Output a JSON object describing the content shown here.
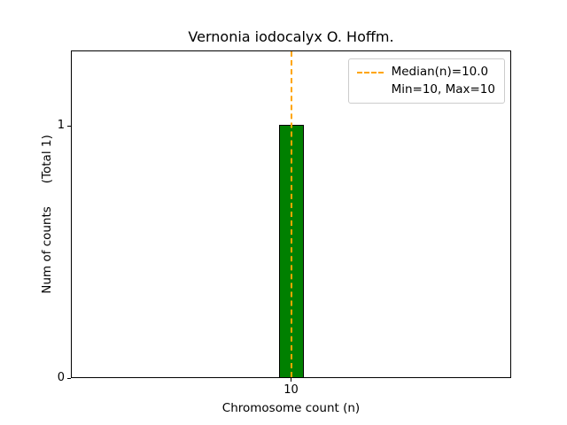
{
  "chart_data": {
    "type": "bar",
    "title": "Vernonia iodocalyx O. Hoffm.",
    "xlabel": "Chromosome count (n)",
    "ylabel": "Num of counts",
    "ylabel_annotation": "(Total 1)",
    "categories": [
      "10"
    ],
    "values": [
      1
    ],
    "total_counts": 1,
    "median": 10.0,
    "min": 10,
    "max": 10,
    "xticks": [
      10
    ],
    "xtick_labels": [
      "10"
    ],
    "yticks": [
      0,
      1
    ],
    "ytick_labels": [
      "0",
      "1"
    ],
    "ylim": [
      0,
      1.3
    ],
    "grid": false,
    "legend_position": "upper right",
    "bar_color": "#008000",
    "bar_edge_color": "#000000",
    "median_line_color": "#ffa500",
    "legend": {
      "entries": [
        {
          "line1": "Median(n)=10.0",
          "line2": "Min=10, Max=10",
          "color": "#ffa500",
          "linestyle": "dashed"
        }
      ]
    }
  }
}
